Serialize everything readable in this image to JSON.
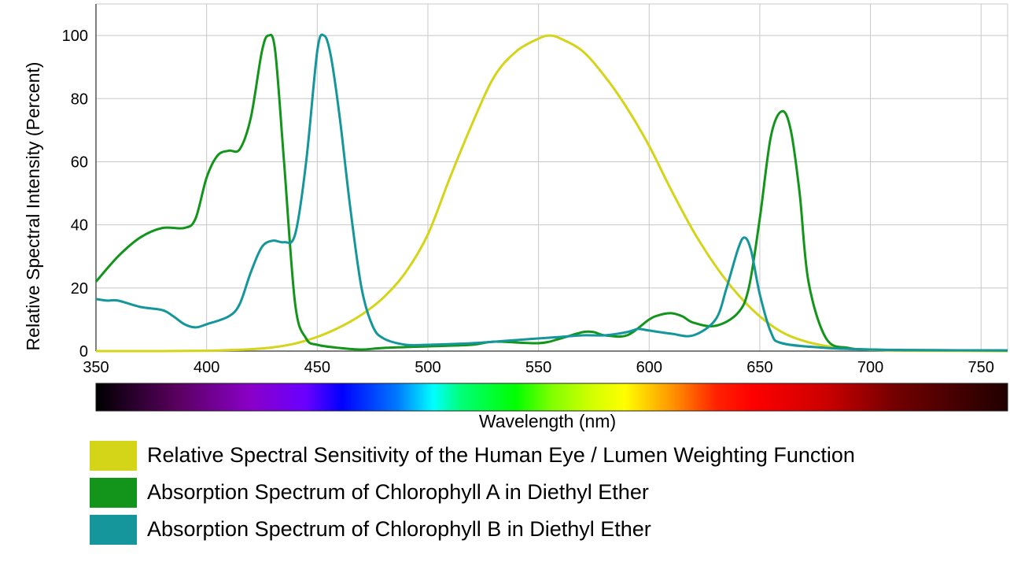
{
  "chart_data": {
    "type": "line",
    "title": "",
    "xlabel": "Wavelength (nm)",
    "ylabel": "Relative Spectral Intensity (Percent)",
    "xlim": [
      350,
      762
    ],
    "ylim": [
      0,
      110
    ],
    "x_ticks": [
      350,
      400,
      450,
      500,
      550,
      600,
      650,
      700,
      750
    ],
    "y_ticks": [
      0,
      20,
      40,
      60,
      80,
      100
    ],
    "grid": true,
    "legend_placement": "bottom",
    "series": [
      {
        "name": "Relative Spectral Sensitivity of the Human Eye / Lumen Weighting Function",
        "color": "#d4d418",
        "x": [
          350,
          380,
          400,
          410,
          420,
          430,
          440,
          450,
          460,
          470,
          480,
          490,
          500,
          510,
          520,
          530,
          540,
          550,
          555,
          560,
          570,
          580,
          590,
          600,
          610,
          620,
          630,
          640,
          650,
          660,
          670,
          680,
          690,
          700,
          710,
          720,
          762
        ],
        "y": [
          0,
          0,
          0.1,
          0.3,
          0.6,
          1.2,
          2.4,
          4.5,
          7.5,
          11.5,
          17,
          25,
          37,
          55,
          72,
          87,
          95,
          99,
          100,
          99,
          95,
          87,
          77,
          65,
          51,
          38,
          27,
          18,
          11,
          6,
          3.2,
          1.6,
          0.8,
          0.4,
          0.2,
          0.1,
          0
        ]
      },
      {
        "name": "Absorption Spectrum of Chlorophyll A in Diethyl Ether",
        "color": "#12951a",
        "x": [
          350,
          360,
          370,
          380,
          390,
          395,
          400,
          405,
          410,
          415,
          420,
          425,
          428,
          431,
          435,
          440,
          445,
          450,
          460,
          470,
          480,
          500,
          520,
          530,
          550,
          560,
          570,
          575,
          580,
          590,
          600,
          605,
          610,
          615,
          620,
          630,
          640,
          645,
          650,
          655,
          660,
          664,
          668,
          672,
          680,
          690,
          700,
          720,
          762
        ],
        "y": [
          22,
          30,
          36,
          39,
          39,
          42,
          55,
          62,
          63.5,
          64,
          74,
          95,
          100,
          95,
          60,
          15,
          4,
          2,
          1,
          0.5,
          1,
          1.5,
          2,
          3,
          2.5,
          4,
          6,
          6,
          5,
          5,
          10,
          11.5,
          12,
          11,
          9,
          8,
          12,
          20,
          42,
          68,
          76,
          70,
          50,
          22,
          4,
          1,
          0.5,
          0.3,
          0.2
        ]
      },
      {
        "name": "Absorption Spectrum of Chlorophyll B in Diethyl Ether",
        "color": "#14969a",
        "x": [
          350,
          355,
          360,
          370,
          380,
          385,
          390,
          395,
          400,
          410,
          415,
          420,
          425,
          430,
          435,
          440,
          445,
          450,
          453,
          456,
          460,
          465,
          470,
          475,
          480,
          490,
          500,
          520,
          540,
          560,
          570,
          580,
          590,
          595,
          600,
          610,
          620,
          630,
          635,
          640,
          643,
          646,
          650,
          655,
          660,
          680,
          700,
          720,
          762
        ],
        "y": [
          16.5,
          16,
          16,
          14,
          13,
          11,
          8.5,
          7.5,
          8.5,
          11,
          15,
          25,
          33,
          35,
          34.5,
          37,
          60,
          95,
          100,
          94,
          75,
          45,
          20,
          8,
          4,
          2,
          2,
          2.5,
          3.5,
          4.5,
          5,
          5,
          6,
          7,
          6.5,
          5.5,
          5,
          10,
          20,
          32,
          36,
          32,
          18,
          6,
          2.5,
          1,
          0.5,
          0.3,
          0.2
        ]
      }
    ]
  }
}
